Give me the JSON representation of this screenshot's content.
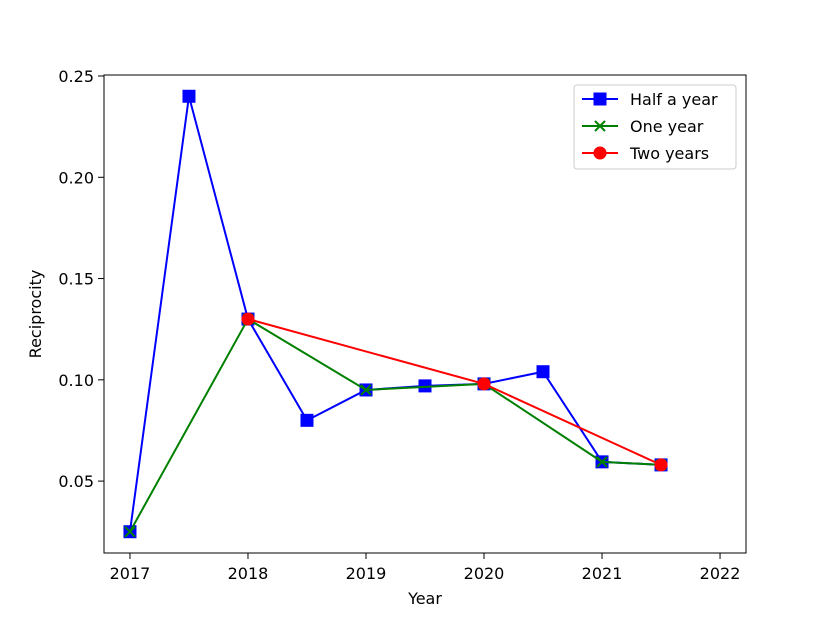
{
  "chart_data": {
    "type": "line",
    "title": "",
    "xlabel": "Year",
    "ylabel": "Reciprocity",
    "xlim": [
      2016.78,
      2022.22
    ],
    "ylim": [
      0.0145,
      0.2505
    ],
    "x_ticks": [
      "2017",
      "2018",
      "2019",
      "2020",
      "2021",
      "2022"
    ],
    "y_ticks": [
      "0.05",
      "0.10",
      "0.15",
      "0.20",
      "0.25"
    ],
    "grid": false,
    "legend_position": "top-right",
    "series": [
      {
        "name": "Half a year",
        "color": "#0000ff",
        "marker": "square",
        "x": [
          2017.0,
          2017.5,
          2018.0,
          2018.5,
          2019.0,
          2019.5,
          2020.0,
          2020.5,
          2021.0,
          2021.5
        ],
        "y": [
          0.025,
          0.24,
          0.13,
          0.08,
          0.095,
          0.097,
          0.098,
          0.104,
          0.0595,
          0.058
        ]
      },
      {
        "name": "One year",
        "color": "#008000",
        "marker": "x",
        "x": [
          2017.0,
          2018.0,
          2019.0,
          2020.0,
          2021.0,
          2021.5
        ],
        "y": [
          0.025,
          0.13,
          0.095,
          0.098,
          0.0595,
          0.058
        ]
      },
      {
        "name": "Two years",
        "color": "#ff0000",
        "marker": "circle",
        "x": [
          2018.0,
          2020.0,
          2021.5
        ],
        "y": [
          0.13,
          0.098,
          0.058
        ]
      }
    ]
  }
}
